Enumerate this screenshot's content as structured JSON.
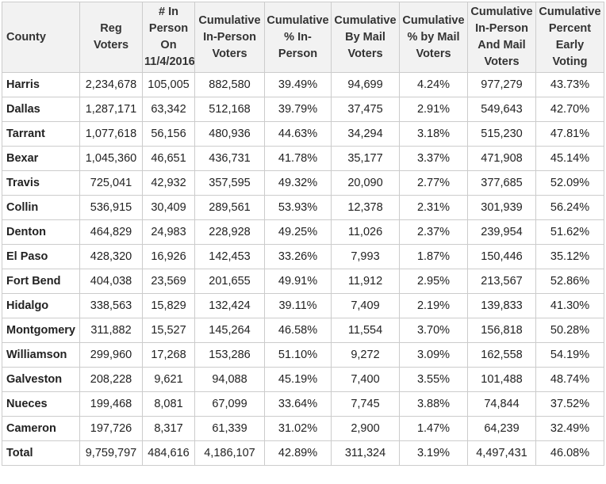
{
  "table": {
    "headers": [
      "County",
      "Reg Voters",
      "# In Person On 11/4/2016",
      "Cumulative In-Person Voters",
      "Cumulative % In-Person",
      "Cumulative By Mail Voters",
      "Cumulative % by Mail Voters",
      "Cumulative In-Person And Mail Voters",
      "Cumulative Percent Early Voting"
    ],
    "rows": [
      [
        "Harris",
        "2,234,678",
        "105,005",
        "882,580",
        "39.49%",
        "94,699",
        "4.24%",
        "977,279",
        "43.73%"
      ],
      [
        "Dallas",
        "1,287,171",
        "63,342",
        "512,168",
        "39.79%",
        "37,475",
        "2.91%",
        "549,643",
        "42.70%"
      ],
      [
        "Tarrant",
        "1,077,618",
        "56,156",
        "480,936",
        "44.63%",
        "34,294",
        "3.18%",
        "515,230",
        "47.81%"
      ],
      [
        "Bexar",
        "1,045,360",
        "46,651",
        "436,731",
        "41.78%",
        "35,177",
        "3.37%",
        "471,908",
        "45.14%"
      ],
      [
        "Travis",
        "725,041",
        "42,932",
        "357,595",
        "49.32%",
        "20,090",
        "2.77%",
        "377,685",
        "52.09%"
      ],
      [
        "Collin",
        "536,915",
        "30,409",
        "289,561",
        "53.93%",
        "12,378",
        "2.31%",
        "301,939",
        "56.24%"
      ],
      [
        "Denton",
        "464,829",
        "24,983",
        "228,928",
        "49.25%",
        "11,026",
        "2.37%",
        "239,954",
        "51.62%"
      ],
      [
        "El Paso",
        "428,320",
        "16,926",
        "142,453",
        "33.26%",
        "7,993",
        "1.87%",
        "150,446",
        "35.12%"
      ],
      [
        "Fort Bend",
        "404,038",
        "23,569",
        "201,655",
        "49.91%",
        "11,912",
        "2.95%",
        "213,567",
        "52.86%"
      ],
      [
        "Hidalgo",
        "338,563",
        "15,829",
        "132,424",
        "39.11%",
        "7,409",
        "2.19%",
        "139,833",
        "41.30%"
      ],
      [
        "Montgomery",
        "311,882",
        "15,527",
        "145,264",
        "46.58%",
        "11,554",
        "3.70%",
        "156,818",
        "50.28%"
      ],
      [
        "Williamson",
        "299,960",
        "17,268",
        "153,286",
        "51.10%",
        "9,272",
        "3.09%",
        "162,558",
        "54.19%"
      ],
      [
        "Galveston",
        "208,228",
        "9,621",
        "94,088",
        "45.19%",
        "7,400",
        "3.55%",
        "101,488",
        "48.74%"
      ],
      [
        "Nueces",
        "199,468",
        "8,081",
        "67,099",
        "33.64%",
        "7,745",
        "3.88%",
        "74,844",
        "37.52%"
      ],
      [
        "Cameron",
        "197,726",
        "8,317",
        "61,339",
        "31.02%",
        "2,900",
        "1.47%",
        "64,239",
        "32.49%"
      ]
    ],
    "total": [
      "Total",
      "9,759,797",
      "484,616",
      "4,186,107",
      "42.89%",
      "311,324",
      "3.19%",
      "4,497,431",
      "46.08%"
    ]
  }
}
